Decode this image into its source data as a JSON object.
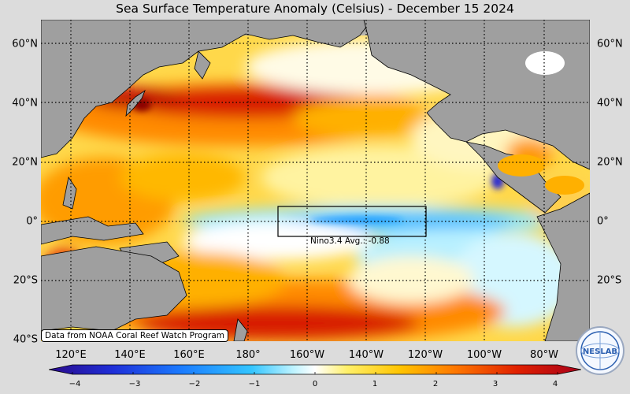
{
  "title": "Sea Surface Temperature Anomaly (Celsius) - December 15 2024",
  "latitude_labels": [
    "60°N",
    "40°N",
    "20°N",
    "0°",
    "20°S",
    "40°S"
  ],
  "longitude_labels": [
    "120°E",
    "140°E",
    "160°E",
    "180°",
    "160°W",
    "140°W",
    "120°W",
    "100°W",
    "80°W"
  ],
  "credit": "Data from NOAA Coral Reef Watch Program",
  "nino_box": {
    "label": "Nino3.4 Avg.:",
    "value": "-0.88"
  },
  "colorbar": {
    "ticks": [
      "−4",
      "−3",
      "−2",
      "−1",
      "0",
      "1",
      "2",
      "3",
      "4"
    ],
    "min": -4,
    "max": 4,
    "colors": [
      "#2a0a8a",
      "#1f2fd8",
      "#1b7cff",
      "#33c5ff",
      "#bff3ff",
      "#ffffff",
      "#fff06a",
      "#ffc400",
      "#ff7a00",
      "#e02000",
      "#a8001a"
    ]
  },
  "logo": {
    "text": "NESLAB"
  },
  "colors": {
    "land": "#9f9f9f",
    "background": "#dcdcdc",
    "warm": "#ff9a00",
    "hot": "#d40000",
    "cool": "#7fe0ff"
  }
}
